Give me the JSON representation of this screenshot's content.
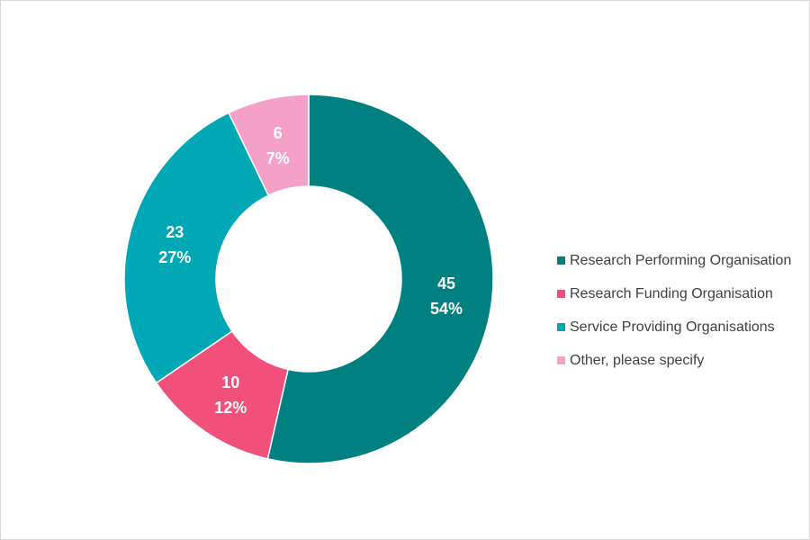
{
  "chart_data": {
    "type": "pie",
    "variant": "donut",
    "title": "",
    "categories": [
      "Research Performing Organisation",
      "Research Funding Organisation",
      "Service Providing Organisations",
      "Other, please specify"
    ],
    "values": [
      45,
      10,
      23,
      6
    ],
    "percent_labels": [
      "54%",
      "12%",
      "27%",
      "7%"
    ],
    "colors": [
      "#008080",
      "#F0507A",
      "#00A8B5",
      "#F5A0C8"
    ],
    "legend_position": "right",
    "start_angle": "12 o'clock",
    "direction": "clockwise"
  }
}
